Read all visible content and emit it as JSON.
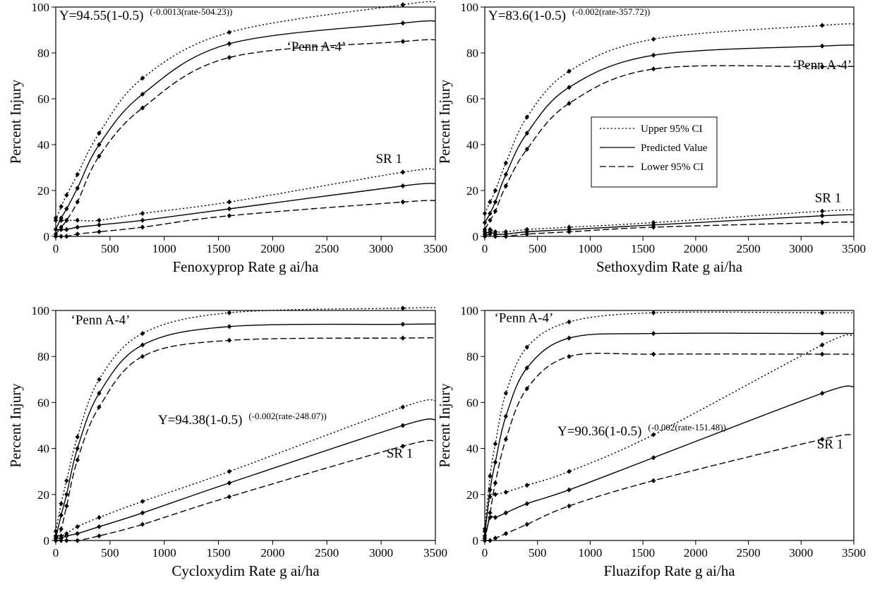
{
  "chart_data": [
    {
      "type": "line",
      "xlabel": "Fenoxyprop Rate g ai/ha",
      "ylabel": "Percent Injury",
      "xlim": [
        0,
        3500
      ],
      "ylim": [
        0,
        100
      ],
      "xticks": [
        0,
        500,
        1000,
        1500,
        2000,
        2500,
        3000,
        3500
      ],
      "yticks": [
        0,
        20,
        40,
        60,
        80,
        100
      ],
      "equation": {
        "main": "Y=94.55(1-0.5)",
        "sup": "(-0.0013(rate-504.23))"
      },
      "x": [
        0,
        50,
        100,
        200,
        400,
        800,
        1600,
        3200
      ],
      "series": [
        {
          "group": "Penn A-4",
          "style": "upper",
          "values": [
            7,
            13,
            18,
            27,
            45,
            69,
            89,
            101
          ]
        },
        {
          "group": "Penn A-4",
          "style": "predicted",
          "values": [
            3,
            8,
            12,
            21,
            40,
            62,
            84,
            93
          ]
        },
        {
          "group": "Penn A-4",
          "style": "lower",
          "values": [
            1,
            4,
            7,
            15,
            35,
            56,
            78,
            85
          ]
        },
        {
          "group": "SR 1",
          "style": "upper",
          "values": [
            8,
            7,
            7,
            7,
            7,
            10,
            15,
            28
          ]
        },
        {
          "group": "SR 1",
          "style": "predicted",
          "values": [
            3,
            3,
            3,
            4,
            5,
            7,
            12,
            22
          ]
        },
        {
          "group": "SR 1",
          "style": "lower",
          "values": [
            0,
            0,
            0,
            1,
            2,
            4,
            9,
            15
          ]
        }
      ],
      "annotations": [
        {
          "text": "‘Penn A-4’",
          "x": 2130,
          "y": 81
        },
        {
          "text": "SR 1",
          "x": 2950,
          "y": 32
        }
      ]
    },
    {
      "type": "line",
      "xlabel": "Sethoxydim  Rate g ai/ha",
      "ylabel": "Percent Injury",
      "xlim": [
        0,
        3500
      ],
      "ylim": [
        0,
        100
      ],
      "xticks": [
        0,
        500,
        1000,
        1500,
        2000,
        2500,
        3000,
        3500
      ],
      "yticks": [
        0,
        20,
        40,
        60,
        80,
        100
      ],
      "equation": {
        "main": "Y=83.6(1-0.5)",
        "sup": "(-0.002(rate-357.72))"
      },
      "x": [
        0,
        50,
        100,
        200,
        400,
        800,
        1600,
        3200
      ],
      "series": [
        {
          "group": "Penn A-4",
          "style": "upper",
          "values": [
            10,
            15,
            20,
            32,
            52,
            72,
            86,
            92
          ]
        },
        {
          "group": "Penn A-4",
          "style": "predicted",
          "values": [
            6,
            10,
            15,
            27,
            45,
            65,
            79,
            83
          ]
        },
        {
          "group": "Penn A-4",
          "style": "lower",
          "values": [
            3,
            7,
            11,
            22,
            38,
            58,
            73,
            74
          ]
        },
        {
          "group": "SR 1",
          "style": "upper",
          "values": [
            2,
            3,
            2,
            2,
            3,
            4,
            6,
            11
          ]
        },
        {
          "group": "SR 1",
          "style": "predicted",
          "values": [
            1,
            2,
            1,
            1,
            2,
            3,
            5,
            9
          ]
        },
        {
          "group": "SR 1",
          "style": "lower",
          "values": [
            0,
            1,
            0,
            0,
            1,
            2,
            4,
            6
          ]
        }
      ],
      "annotations": [
        {
          "text": "‘Penn A-4’",
          "x": 2920,
          "y": 73
        },
        {
          "text": "SR 1",
          "x": 3130,
          "y": 15
        }
      ],
      "legend": {
        "position": "center",
        "entries": [
          {
            "label": "Upper 95% CI",
            "style": "upper"
          },
          {
            "label": "Predicted Value",
            "style": "predicted"
          },
          {
            "label": "Lower 95% CI",
            "style": "lower"
          }
        ]
      }
    },
    {
      "type": "line",
      "xlabel": "Cycloxydim  Rate g ai/ha",
      "ylabel": "Percent Injury",
      "xlim": [
        0,
        3500
      ],
      "ylim": [
        0,
        100
      ],
      "xticks": [
        0,
        500,
        1000,
        1500,
        2000,
        2500,
        3000,
        3500
      ],
      "yticks": [
        0,
        20,
        40,
        60,
        80,
        100
      ],
      "equation": {
        "main": "Y=94.38(1-0.5)",
        "sup": "(-0.002(rate-248.07))"
      },
      "x": [
        0,
        50,
        100,
        200,
        400,
        800,
        1600,
        3200
      ],
      "series": [
        {
          "group": "Penn A-4",
          "style": "upper",
          "values": [
            4,
            16,
            26,
            45,
            70,
            90,
            99,
            101
          ]
        },
        {
          "group": "Penn A-4",
          "style": "predicted",
          "values": [
            1,
            11,
            20,
            40,
            64,
            85,
            93,
            94
          ]
        },
        {
          "group": "Penn A-4",
          "style": "lower",
          "values": [
            0,
            5,
            15,
            35,
            58,
            80,
            87,
            88
          ]
        },
        {
          "group": "SR 1",
          "style": "upper",
          "values": [
            2,
            2,
            3,
            6,
            10,
            17,
            30,
            58
          ]
        },
        {
          "group": "SR 1",
          "style": "predicted",
          "values": [
            1,
            1,
            2,
            3,
            6,
            12,
            25,
            50
          ]
        },
        {
          "group": "SR 1",
          "style": "lower",
          "values": [
            0,
            0,
            0,
            0,
            2,
            7,
            19,
            41
          ]
        }
      ],
      "annotations": [
        {
          "text": "‘Penn A-4’",
          "x": 140,
          "y": 94
        },
        {
          "text": "SR 1",
          "x": 3050,
          "y": 36
        }
      ]
    },
    {
      "type": "line",
      "xlabel": "Fluazifop Rate g ai/ha",
      "ylabel": "Percent Injury",
      "xlim": [
        0,
        3500
      ],
      "ylim": [
        0,
        100
      ],
      "xticks": [
        0,
        500,
        1000,
        1500,
        2000,
        2500,
        3000,
        3500
      ],
      "yticks": [
        0,
        20,
        40,
        60,
        80,
        100
      ],
      "equation": {
        "main": "Y=90.36(1-0.5)",
        "sup": "(-0.002(rate-151.48))"
      },
      "x": [
        0,
        50,
        100,
        200,
        400,
        800,
        1600,
        3200
      ],
      "series": [
        {
          "group": "Penn A-4",
          "style": "upper",
          "values": [
            5,
            28,
            42,
            64,
            84,
            95,
            99,
            99
          ]
        },
        {
          "group": "Penn A-4",
          "style": "predicted",
          "values": [
            2,
            22,
            34,
            54,
            75,
            88,
            90,
            90
          ]
        },
        {
          "group": "Penn A-4",
          "style": "lower",
          "values": [
            0,
            12,
            25,
            44,
            66,
            80,
            81,
            81
          ]
        },
        {
          "group": "SR 1",
          "style": "upper",
          "values": [
            4,
            19,
            20,
            21,
            24,
            30,
            46,
            85
          ]
        },
        {
          "group": "SR 1",
          "style": "predicted",
          "values": [
            1,
            10,
            10,
            12,
            16,
            22,
            36,
            64
          ]
        },
        {
          "group": "SR 1",
          "style": "lower",
          "values": [
            0,
            0,
            1,
            3,
            7,
            15,
            26,
            44
          ]
        }
      ],
      "annotations": [
        {
          "text": "‘Penn A-4’",
          "x": 90,
          "y": 95
        },
        {
          "text": "SR 1",
          "x": 3150,
          "y": 40
        }
      ]
    }
  ]
}
